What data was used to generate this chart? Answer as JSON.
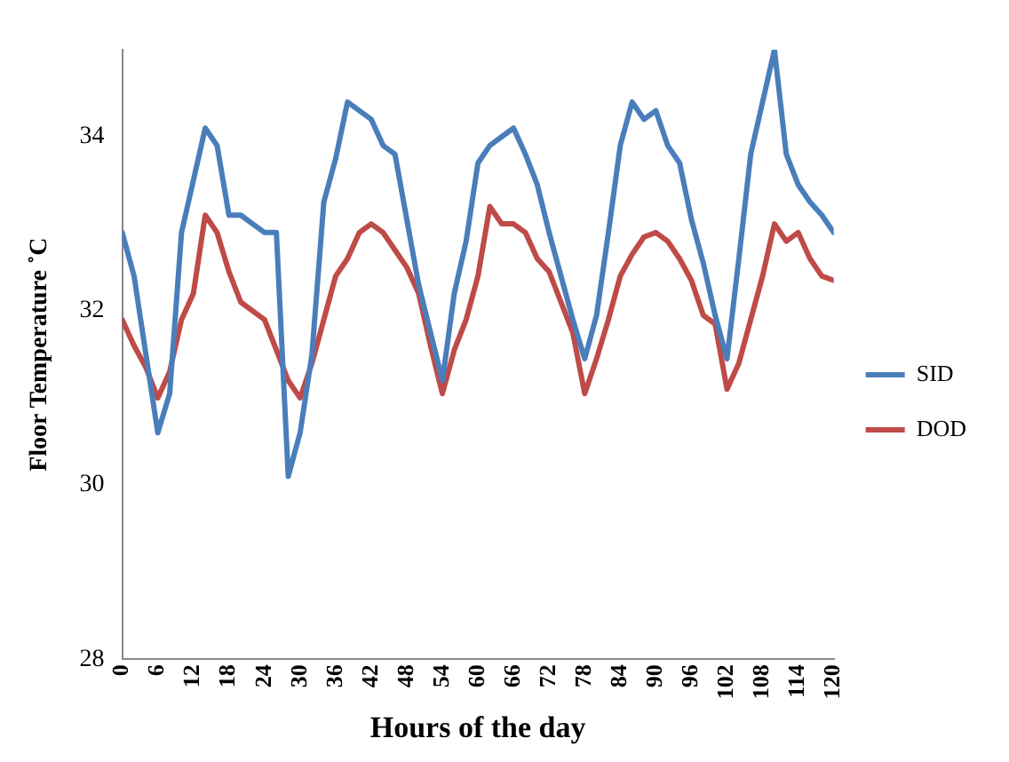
{
  "chart_data": {
    "type": "line",
    "xlabel": "Hours of the day",
    "ylabel": "Floor Temperature ˚C",
    "x": [
      0,
      2,
      4,
      6,
      8,
      10,
      12,
      14,
      16,
      18,
      20,
      22,
      24,
      26,
      28,
      30,
      32,
      34,
      36,
      38,
      40,
      42,
      44,
      46,
      48,
      50,
      52,
      54,
      56,
      58,
      60,
      62,
      64,
      66,
      68,
      70,
      72,
      74,
      76,
      78,
      80,
      82,
      84,
      86,
      88,
      90,
      92,
      94,
      96,
      98,
      100,
      102,
      104,
      106,
      108,
      110,
      112,
      114,
      116,
      118,
      120
    ],
    "series": [
      {
        "name": "SID",
        "color": "#4a7ebb",
        "values": [
          32.9,
          32.4,
          31.5,
          30.6,
          31.05,
          32.9,
          33.5,
          34.1,
          33.9,
          33.1,
          33.1,
          33.0,
          32.9,
          32.9,
          30.1,
          30.6,
          31.5,
          33.25,
          33.75,
          34.4,
          34.3,
          34.2,
          33.9,
          33.8,
          33.05,
          32.3,
          31.75,
          31.2,
          32.2,
          32.8,
          33.7,
          33.9,
          34.0,
          34.1,
          33.8,
          33.45,
          32.9,
          32.4,
          31.9,
          31.45,
          31.95,
          32.9,
          33.9,
          34.4,
          34.2,
          34.3,
          33.9,
          33.7,
          33.05,
          32.55,
          31.95,
          31.45,
          32.6,
          33.8,
          34.4,
          35.0,
          33.8,
          33.45,
          33.25,
          33.1,
          32.9
        ]
      },
      {
        "name": "DOD",
        "color": "#be4b48",
        "values": [
          31.9,
          31.6,
          31.35,
          31.0,
          31.3,
          31.9,
          32.2,
          33.1,
          32.9,
          32.45,
          32.1,
          32.0,
          31.9,
          31.55,
          31.2,
          31.0,
          31.4,
          31.9,
          32.4,
          32.6,
          32.9,
          33.0,
          32.9,
          32.7,
          32.5,
          32.2,
          31.6,
          31.05,
          31.55,
          31.9,
          32.4,
          33.2,
          33.0,
          33.0,
          32.9,
          32.6,
          32.45,
          32.1,
          31.75,
          31.05,
          31.45,
          31.9,
          32.4,
          32.65,
          32.85,
          32.9,
          32.8,
          32.6,
          32.35,
          31.95,
          31.85,
          31.1,
          31.4,
          31.9,
          32.4,
          33.0,
          32.8,
          32.9,
          32.6,
          32.4,
          32.35
        ]
      }
    ],
    "xlim": [
      0,
      120
    ],
    "xticks": [
      0,
      6,
      12,
      18,
      24,
      30,
      36,
      42,
      48,
      54,
      60,
      66,
      72,
      78,
      84,
      90,
      96,
      102,
      108,
      114,
      120
    ],
    "ylim": [
      28,
      35
    ],
    "yticks": [
      28,
      30,
      32,
      34
    ],
    "grid": false,
    "legend": "right",
    "marker": "none",
    "line_style": "solid"
  }
}
